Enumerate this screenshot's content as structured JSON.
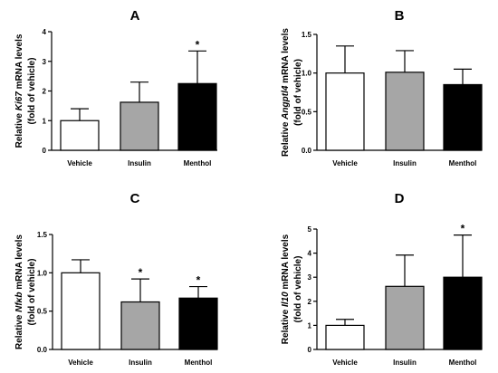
{
  "chart_data": [
    {
      "type": "bar",
      "panel": "A",
      "categories": [
        "Vehicle",
        "Insulin",
        "Menthol"
      ],
      "values": [
        1.0,
        1.62,
        2.25
      ],
      "errors": [
        0.4,
        0.68,
        1.1
      ],
      "significance": [
        "",
        "",
        "*"
      ],
      "ylabel_lines": [
        {
          "pre": "Relative ",
          "ital": "Ki67",
          "post": " mRNA levels"
        },
        {
          "pre": "(fold of vehicle)",
          "ital": "",
          "post": ""
        }
      ],
      "ylim": [
        0,
        4
      ],
      "yticks": [
        0,
        1,
        2,
        3,
        4
      ],
      "ytick_labels": [
        "0",
        "1",
        "2",
        "3",
        "4"
      ],
      "bar_colors": [
        "#ffffff",
        "#a6a6a6",
        "#000000"
      ]
    },
    {
      "type": "bar",
      "panel": "B",
      "categories": [
        "Vehicle",
        "Insulin",
        "Menthol"
      ],
      "values": [
        1.0,
        1.01,
        0.85
      ],
      "errors": [
        0.35,
        0.28,
        0.2
      ],
      "significance": [
        "",
        "",
        ""
      ],
      "ylabel_lines": [
        {
          "pre": "Relative ",
          "ital": "Angptl4",
          "post": " mRNA levels"
        },
        {
          "pre": "(fold of vehicle)",
          "ital": "",
          "post": ""
        }
      ],
      "ylim": [
        0,
        1.5
      ],
      "yticks": [
        0,
        0.5,
        1.0,
        1.5
      ],
      "ytick_labels": [
        "0.0",
        "0.5",
        "1.0",
        "1.5"
      ],
      "bar_colors": [
        "#ffffff",
        "#a6a6a6",
        "#000000"
      ]
    },
    {
      "type": "bar",
      "panel": "C",
      "categories": [
        "Vehicle",
        "Insulin",
        "Menthol"
      ],
      "values": [
        1.0,
        0.62,
        0.67
      ],
      "errors": [
        0.17,
        0.3,
        0.15
      ],
      "significance": [
        "",
        "*",
        "*"
      ],
      "ylabel_lines": [
        {
          "pre": "Relative ",
          "ital": "Nfκb",
          "post": " mRNA levels"
        },
        {
          "pre": "(fold of vehicle)",
          "ital": "",
          "post": ""
        }
      ],
      "ylim": [
        0,
        1.5
      ],
      "yticks": [
        0,
        0.5,
        1.0,
        1.5
      ],
      "ytick_labels": [
        "0.0",
        "0.5",
        "1.0",
        "1.5"
      ],
      "bar_colors": [
        "#ffffff",
        "#a6a6a6",
        "#000000"
      ]
    },
    {
      "type": "bar",
      "panel": "D",
      "categories": [
        "Vehicle",
        "Insulin",
        "Menthol"
      ],
      "values": [
        1.0,
        2.62,
        3.0
      ],
      "errors": [
        0.25,
        1.3,
        1.75
      ],
      "significance": [
        "",
        "",
        "*"
      ],
      "ylabel_lines": [
        {
          "pre": "Relative ",
          "ital": "Il10",
          "post": " mRNA levels"
        },
        {
          "pre": "(fold of vehicle)",
          "ital": "",
          "post": ""
        }
      ],
      "ylim": [
        0,
        5
      ],
      "yticks": [
        0,
        1,
        2,
        3,
        4,
        5
      ],
      "ytick_labels": [
        "0",
        "1",
        "2",
        "3",
        "4",
        "5"
      ],
      "bar_colors": [
        "#ffffff",
        "#a6a6a6",
        "#000000"
      ]
    }
  ]
}
